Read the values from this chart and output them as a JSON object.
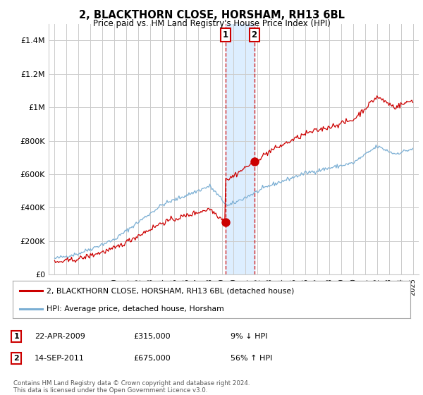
{
  "title": "2, BLACKTHORN CLOSE, HORSHAM, RH13 6BL",
  "subtitle": "Price paid vs. HM Land Registry's House Price Index (HPI)",
  "hpi_label": "HPI: Average price, detached house, Horsham",
  "price_label": "2, BLACKTHORN CLOSE, HORSHAM, RH13 6BL (detached house)",
  "transaction1": {
    "date": "22-APR-2009",
    "price": "£315,000",
    "hpi_diff": "9% ↓ HPI",
    "num": "1"
  },
  "transaction2": {
    "date": "14-SEP-2011",
    "price": "£675,000",
    "hpi_diff": "56% ↑ HPI",
    "num": "2"
  },
  "t1_x": 2009.31,
  "t2_x": 2011.72,
  "t1_y": 315000,
  "t2_y": 675000,
  "ylim": [
    0,
    1500000
  ],
  "xlim_start": 1994.5,
  "xlim_end": 2025.5,
  "footer": "Contains HM Land Registry data © Crown copyright and database right 2024.\nThis data is licensed under the Open Government Licence v3.0.",
  "hpi_color": "#7bafd4",
  "price_color": "#cc0000",
  "shading_color": "#ddeeff",
  "grid_color": "#cccccc",
  "background_color": "#ffffff"
}
